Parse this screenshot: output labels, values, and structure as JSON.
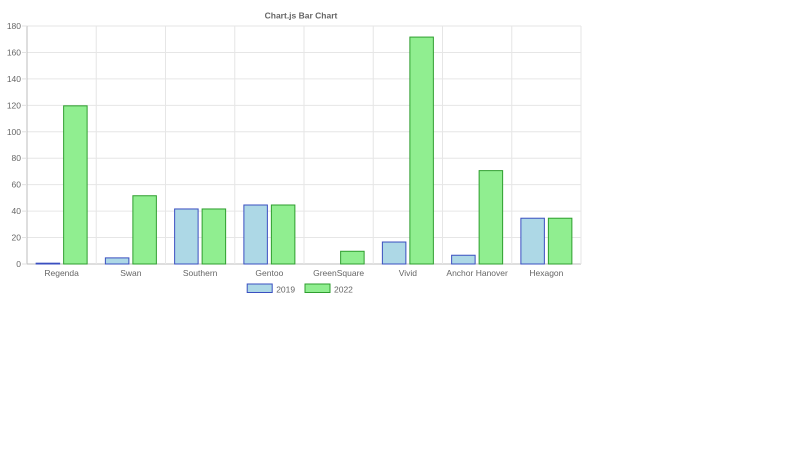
{
  "chart_data": {
    "type": "bar",
    "title": "Chart.js Bar Chart",
    "categories": [
      "Regenda",
      "Swan",
      "Southern",
      "Gentoo",
      "GreenSquare",
      "Vivid",
      "Anchor Hanover",
      "Hexagon"
    ],
    "series": [
      {
        "name": "2019",
        "values": [
          1,
          5,
          42,
          45,
          0,
          17,
          7,
          35
        ],
        "color": "#add8e6",
        "border": "#3a4fc0"
      },
      {
        "name": "2022",
        "values": [
          120,
          52,
          42,
          45,
          10,
          172,
          71,
          35
        ],
        "color": "#90ee90",
        "border": "#2e9e2e"
      }
    ],
    "ylim": [
      0,
      180
    ],
    "yticks": [
      "0",
      "20",
      "40",
      "60",
      "80",
      "100",
      "120",
      "140",
      "160",
      "180"
    ],
    "grid": true,
    "legend_position": "bottom"
  }
}
